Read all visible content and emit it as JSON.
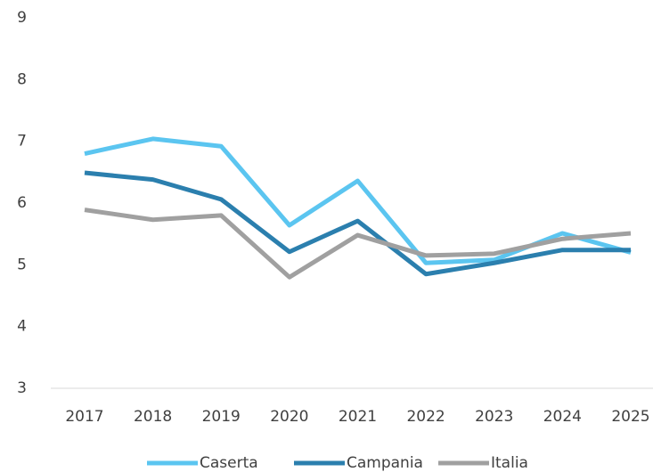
{
  "chart_data": {
    "type": "line",
    "categories": [
      "2017",
      "2018",
      "2019",
      "2020",
      "2021",
      "2022",
      "2023",
      "2024",
      "2025"
    ],
    "series": [
      {
        "name": "Caserta",
        "color": "#5bc5f0",
        "values": [
          6.8,
          7.04,
          6.92,
          5.64,
          6.36,
          5.03,
          5.08,
          5.51,
          5.2
        ]
      },
      {
        "name": "Campania",
        "color": "#2b7fae",
        "values": [
          6.49,
          6.38,
          6.06,
          5.21,
          5.71,
          4.85,
          5.03,
          5.24,
          5.24
        ]
      },
      {
        "name": "Italia",
        "color": "#a0a0a0",
        "values": [
          5.89,
          5.73,
          5.8,
          4.8,
          5.48,
          5.15,
          5.18,
          5.42,
          5.51
        ]
      }
    ],
    "ylim": [
      3,
      9
    ],
    "yticks": [
      3,
      4,
      5,
      6,
      7,
      8,
      9
    ],
    "grid": false,
    "legend": "bottom"
  }
}
